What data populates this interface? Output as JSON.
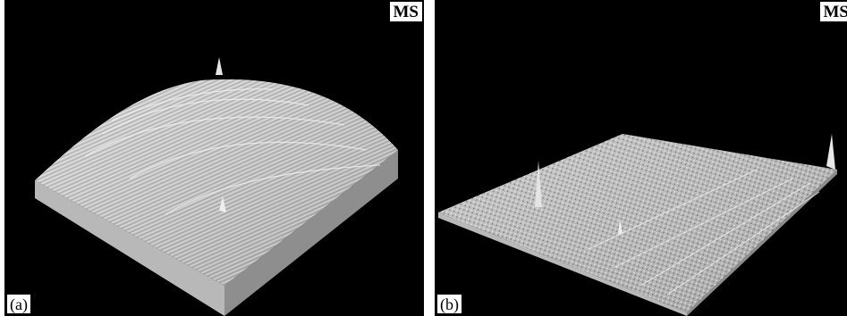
{
  "panels": [
    {
      "label": "(a)",
      "badge": "MS"
    },
    {
      "label": "(b)",
      "badge": "MS"
    }
  ],
  "colors": {
    "background": "#000000",
    "surface": "#c8c8c8",
    "side_light": "#b4b4b4",
    "side_dark": "#8c8c8c",
    "tag_background": "#ffffff"
  }
}
